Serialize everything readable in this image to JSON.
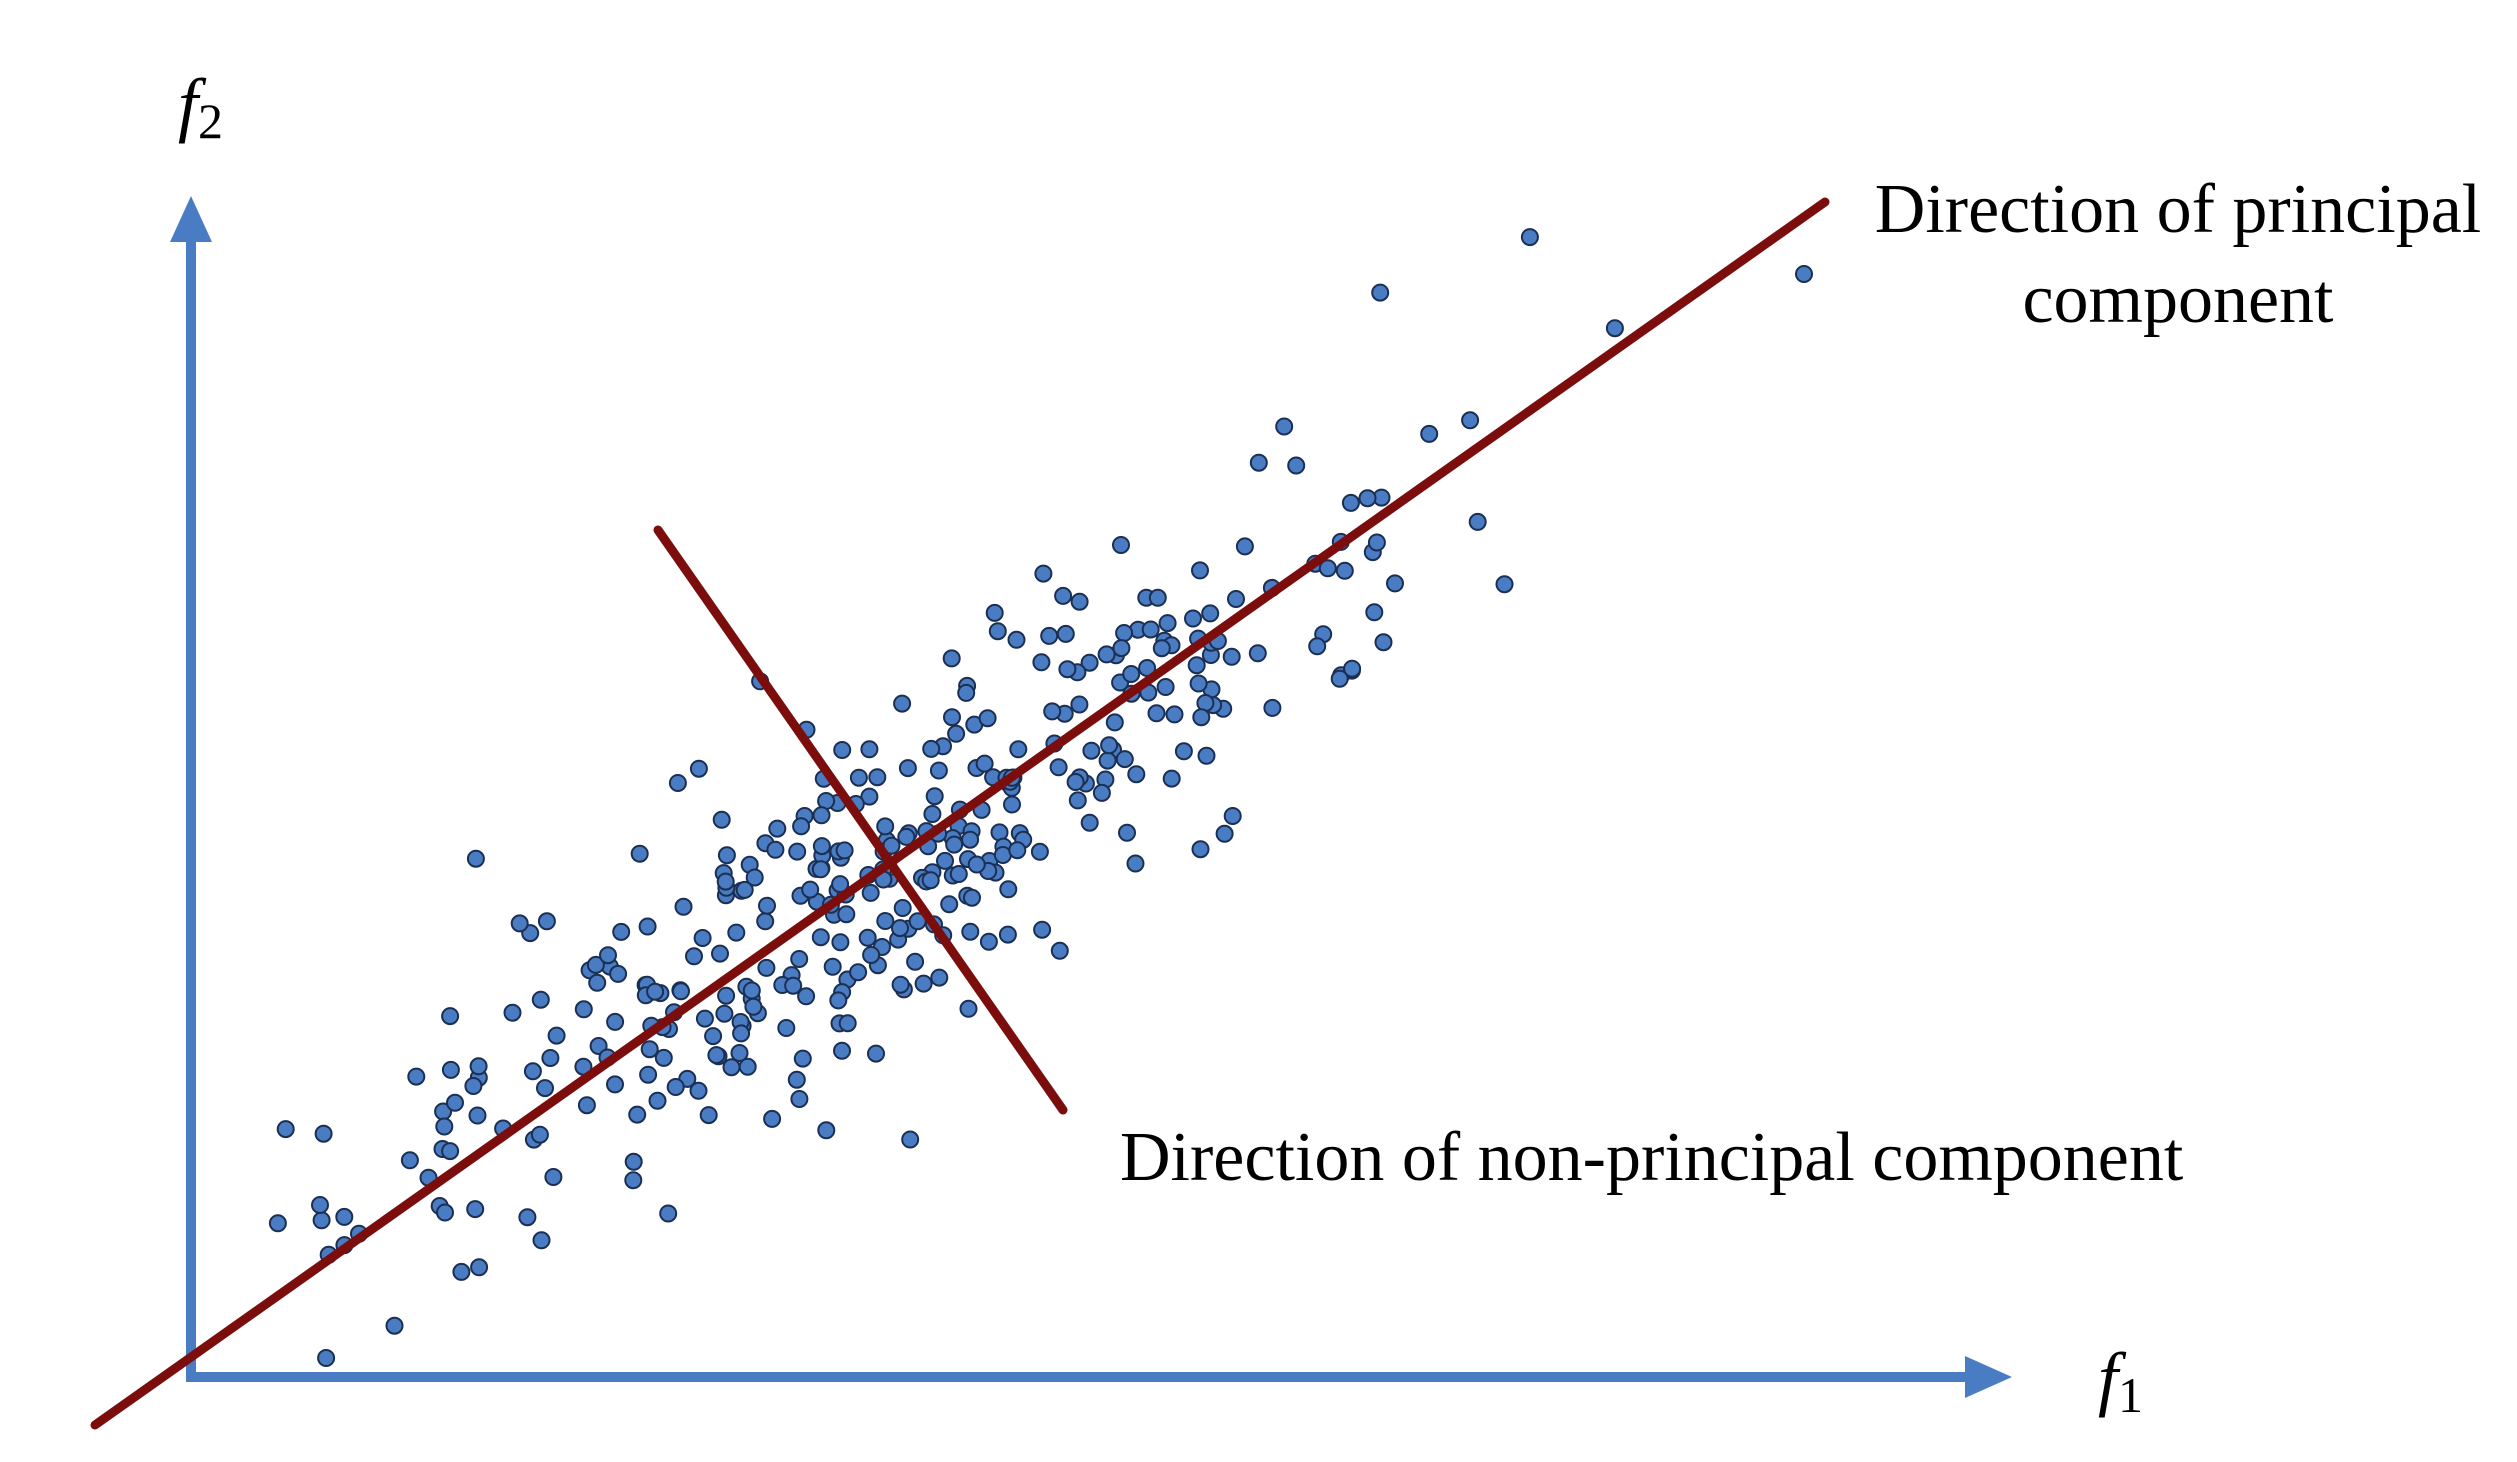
{
  "diagram": {
    "axes": {
      "x_label_var": "f",
      "x_label_sub": "1",
      "y_label_var": "f",
      "y_label_sub": "2",
      "axis_color": "#4a7cc4"
    },
    "principal_component": {
      "label_line1": "Direction of principal",
      "label_line2": "component",
      "color": "#7b0d0d"
    },
    "non_principal_component": {
      "label": "Direction of non-principal component",
      "color": "#7b0d0d"
    },
    "points": {
      "color": "#4a7cc4",
      "count": 380,
      "outliers": [
        [
          -4.5,
          -0.8
        ],
        [
          -1.6,
          2.7
        ],
        [
          4.6,
          -2.9
        ],
        [
          8.7,
          1.0
        ],
        [
          0,
          -5.0
        ]
      ]
    }
  }
}
